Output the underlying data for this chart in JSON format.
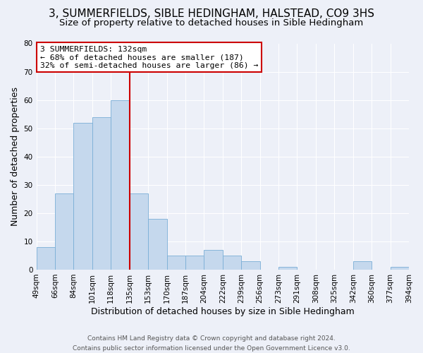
{
  "title": "3, SUMMERFIELDS, SIBLE HEDINGHAM, HALSTEAD, CO9 3HS",
  "subtitle": "Size of property relative to detached houses in Sible Hedingham",
  "xlabel": "Distribution of detached houses by size in Sible Hedingham",
  "ylabel": "Number of detached properties",
  "bar_values": [
    8,
    27,
    52,
    54,
    60,
    27,
    18,
    5,
    5,
    7,
    5,
    3,
    0,
    1,
    0,
    0,
    0,
    3,
    0,
    1
  ],
  "bar_labels": [
    "49sqm",
    "66sqm",
    "84sqm",
    "101sqm",
    "118sqm",
    "135sqm",
    "153sqm",
    "170sqm",
    "187sqm",
    "204sqm",
    "222sqm",
    "239sqm",
    "256sqm",
    "273sqm",
    "291sqm",
    "308sqm",
    "325sqm",
    "342sqm",
    "360sqm",
    "377sqm",
    "394sqm"
  ],
  "bar_color": "#c5d8ed",
  "bar_edge_color": "#7aaed6",
  "vline_color": "#cc0000",
  "annotation_text": "3 SUMMERFIELDS: 132sqm\n← 68% of detached houses are smaller (187)\n32% of semi-detached houses are larger (86) →",
  "box_color": "#ffffff",
  "box_edge_color": "#cc0000",
  "ylim": [
    0,
    80
  ],
  "yticks": [
    0,
    10,
    20,
    30,
    40,
    50,
    60,
    70,
    80
  ],
  "footer_text": "Contains HM Land Registry data © Crown copyright and database right 2024.\nContains public sector information licensed under the Open Government Licence v3.0.",
  "background_color": "#edf0f8",
  "grid_color": "#ffffff",
  "title_fontsize": 11,
  "subtitle_fontsize": 9.5,
  "axis_label_fontsize": 9,
  "tick_fontsize": 7.5,
  "footer_fontsize": 6.5
}
